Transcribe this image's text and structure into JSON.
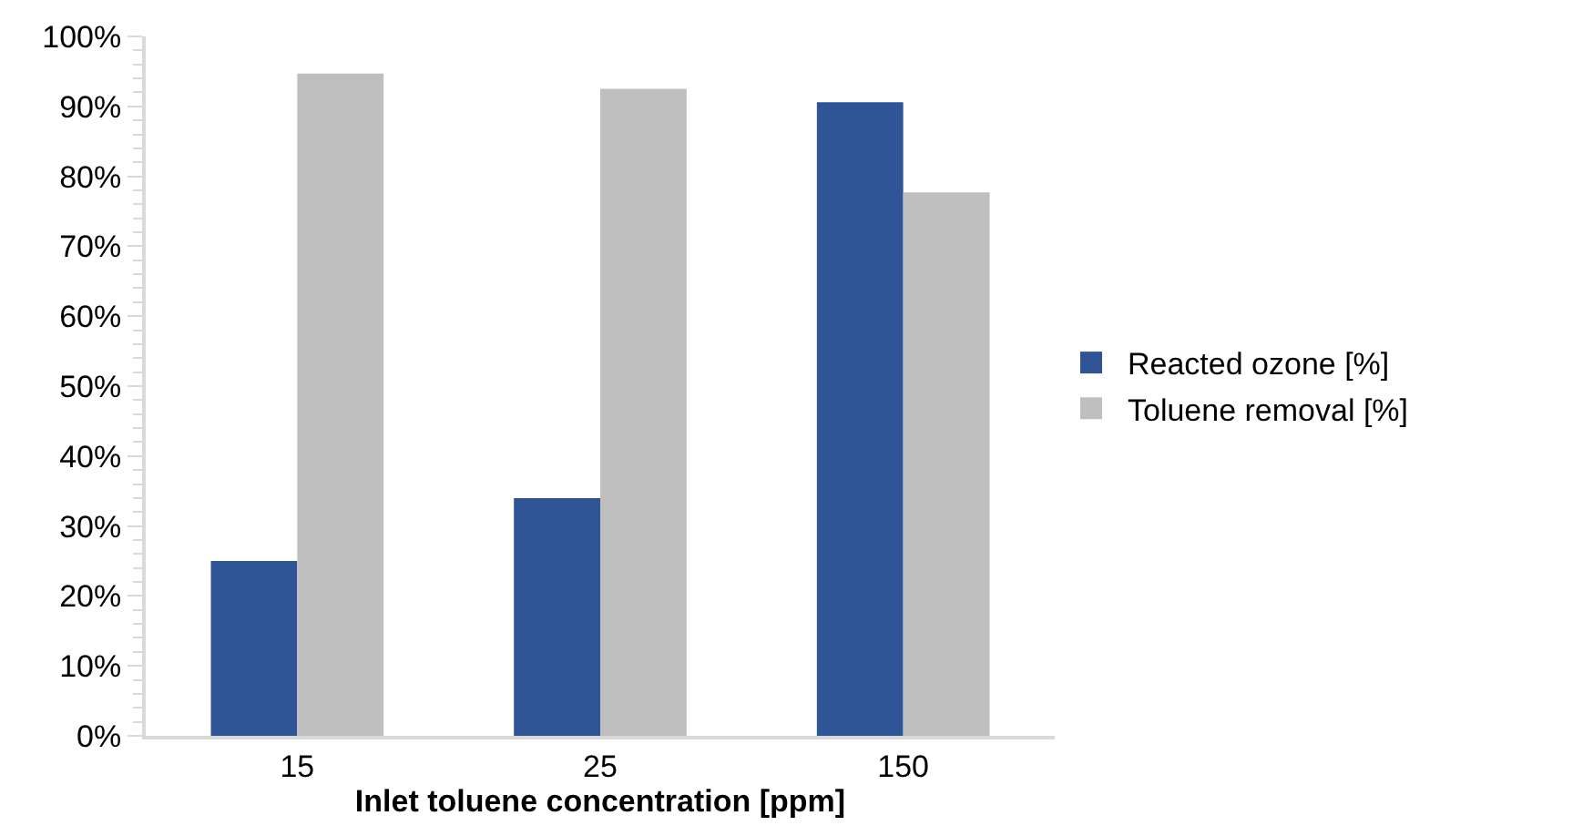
{
  "chart_data": {
    "type": "bar",
    "xlabel": "Inlet toluene concentration [ppm]",
    "categories": [
      "15",
      "25",
      "150"
    ],
    "series": [
      {
        "name": "Reacted ozone [%]",
        "color": "#2f5597",
        "values": [
          25,
          34,
          90.6
        ]
      },
      {
        "name": "Toluene removal [%]",
        "color": "#bfbfbf",
        "values": [
          94.7,
          92.5,
          77.7
        ]
      }
    ],
    "ylim": [
      0,
      100
    ],
    "yticks": [
      {
        "value": 0,
        "label": "0%"
      },
      {
        "value": 10,
        "label": "10%"
      },
      {
        "value": 20,
        "label": "20%"
      },
      {
        "value": 30,
        "label": "30%"
      },
      {
        "value": 40,
        "label": "40%"
      },
      {
        "value": 50,
        "label": "50%"
      },
      {
        "value": 60,
        "label": "60%"
      },
      {
        "value": 70,
        "label": "70%"
      },
      {
        "value": 80,
        "label": "80%"
      },
      {
        "value": 90,
        "label": "90%"
      },
      {
        "value": 100,
        "label": "100%"
      }
    ],
    "legend": "right"
  }
}
